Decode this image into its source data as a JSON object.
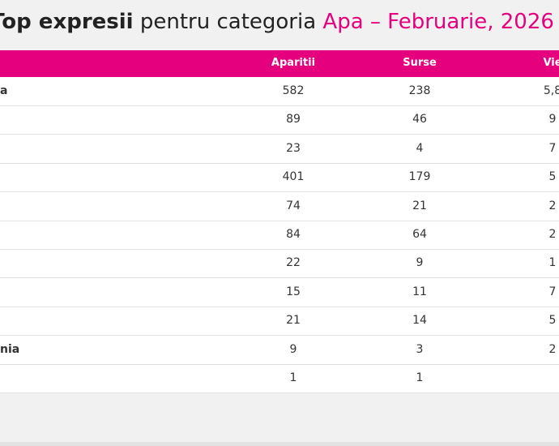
{
  "header": {
    "title_bold": "Top expresii",
    "title_plain": "pentru categoria",
    "title_accent": "Apa – Februarie, 2026"
  },
  "table": {
    "columns": [
      null,
      "Aparitii",
      "Surse",
      "Vie"
    ],
    "rows": [
      [
        "a",
        582,
        238,
        "5,8"
      ],
      [
        null,
        89,
        46,
        "9"
      ],
      [
        null,
        23,
        4,
        "7"
      ],
      [
        null,
        401,
        179,
        "5"
      ],
      [
        null,
        74,
        21,
        "2"
      ],
      [
        null,
        84,
        64,
        "2"
      ],
      [
        null,
        22,
        9,
        "1"
      ],
      [
        null,
        15,
        11,
        "7"
      ],
      [
        null,
        21,
        14,
        "5"
      ],
      [
        "nia",
        9,
        3,
        "2"
      ],
      [
        null,
        1,
        1,
        null
      ]
    ]
  }
}
